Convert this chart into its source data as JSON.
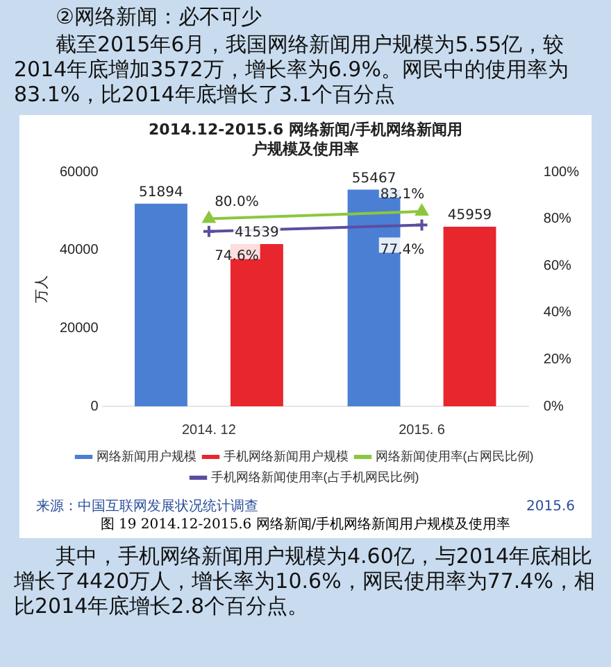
{
  "chart_data": {
    "type": "bar",
    "title": "2014.12-2015.6 网络新闻/手机网络新闻用户规模及使用率",
    "ylabel": "万人",
    "categories": [
      "2014. 12",
      "2015. 6"
    ],
    "series": [
      {
        "name": "网络新闻用户规模",
        "color": "#4a7fd4",
        "values": [
          51894,
          55467
        ],
        "value_labels": [
          "51894",
          "55467"
        ]
      },
      {
        "name": "手机网络新闻用户规模",
        "color": "#e8262d",
        "values": [
          41539,
          45959
        ],
        "value_labels": [
          "41539",
          "45959"
        ]
      },
      {
        "name": "网络新闻使用率(占网民比例)",
        "type": "line",
        "axis": "y2",
        "color": "#8cc63e",
        "marker": "triangle",
        "values": [
          80.0,
          83.1
        ],
        "value_labels": [
          "80.0%",
          "83.1%"
        ]
      },
      {
        "name": "手机网络新闻使用率(占手机网民比例)",
        "type": "line",
        "axis": "y2",
        "color": "#5b4ea0",
        "marker": "cross",
        "values": [
          74.6,
          77.4
        ],
        "value_labels": [
          "74.6%",
          "77.4%"
        ]
      }
    ],
    "ylim": [
      0,
      60000
    ],
    "yticks": [
      0,
      20000,
      40000,
      60000
    ],
    "y2lim": [
      0,
      100
    ],
    "y2ticks": [
      {
        "value": 0,
        "label": "0%"
      },
      {
        "value": 20,
        "label": "20%"
      },
      {
        "value": 40,
        "label": "40%"
      },
      {
        "value": 60,
        "label": "60%"
      },
      {
        "value": 80,
        "label": "80%"
      },
      {
        "value": 100,
        "label": "100%"
      }
    ],
    "grid": false,
    "legend": "bottom",
    "annotations": [
      "②网络新闻：必不可少",
      "截至2015年6月，我国网络新闻用户规模为5.55亿，较2014年底增加3572万，增长率为6.9%。网民中的使用率为83.1%，比2014年底增长了3.1个百分点",
      "来源：中国互联网发展状况统计调查",
      "2015.6",
      "图 19 2014.12-2015.6 网络新闻/手机网络新闻用户规模及使用率",
      "其中，手机网络新闻用户规模为4.60亿，与2014年底相比增长了4420万人，增长率为10.6%，网民使用率为77.4%，相比2014年底增长2.8个百分点。"
    ]
  }
}
